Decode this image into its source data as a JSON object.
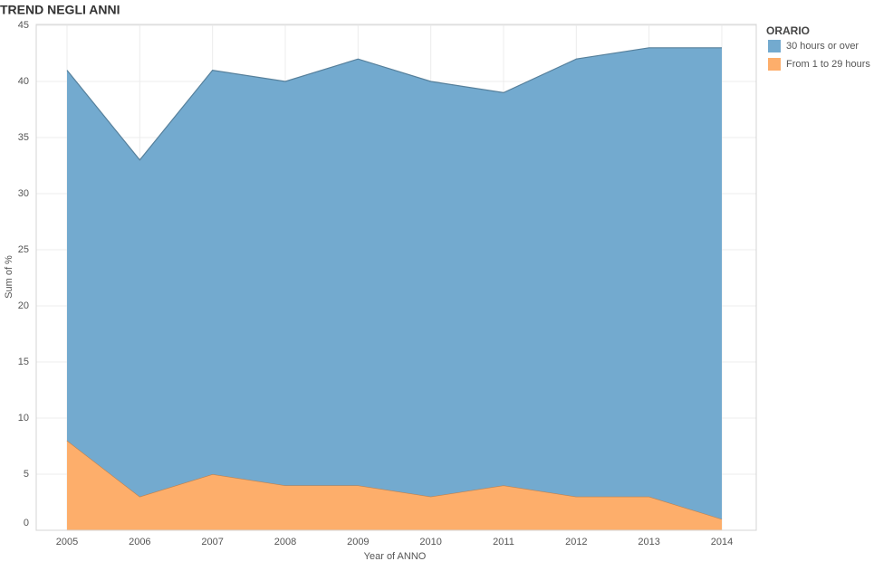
{
  "chart_data": {
    "type": "area",
    "title": "TREND NEGLI ANNI",
    "x_label": "Year of ANNO",
    "y_label": "Sum of %",
    "legend_title": "ORARIO",
    "legend_position": "right",
    "stacked": true,
    "grid": true,
    "categories": [
      "2005",
      "2006",
      "2007",
      "2008",
      "2009",
      "2010",
      "2011",
      "2012",
      "2013",
      "2014"
    ],
    "series": [
      {
        "name": "30 hours or over",
        "color": "#73aacf",
        "values": [
          33,
          30,
          36,
          36,
          38,
          37,
          35,
          39,
          40,
          42
        ]
      },
      {
        "name": "From 1 to 29 hours",
        "color": "#fdae6b",
        "values": [
          8,
          3,
          5,
          4,
          4,
          3,
          4,
          3,
          3,
          1
        ]
      }
    ],
    "ylim": [
      0,
      45
    ],
    "yticks": [
      0,
      5,
      10,
      15,
      20,
      25,
      30,
      35,
      40,
      45
    ]
  }
}
